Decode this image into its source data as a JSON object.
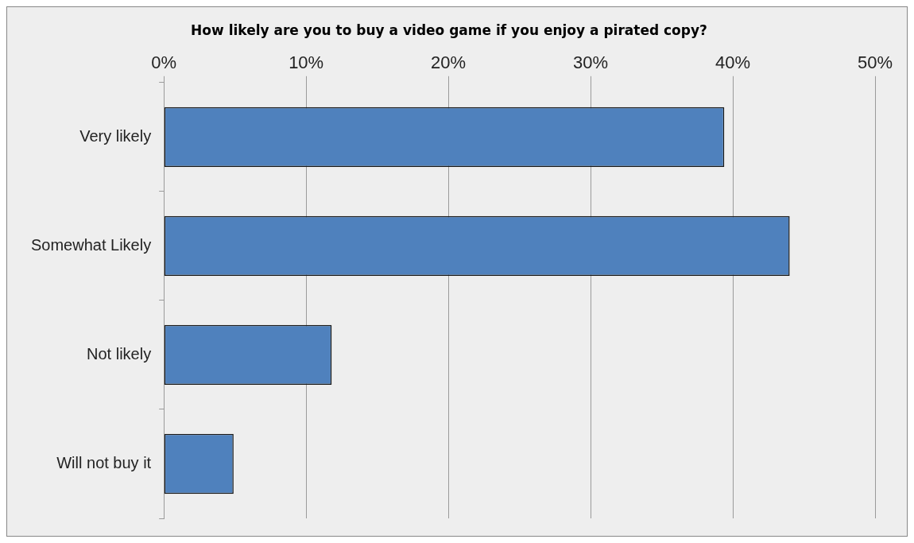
{
  "chart_data": {
    "type": "bar",
    "orientation": "horizontal",
    "title": "How likely are you to buy a video game if you enjoy a pirated copy?",
    "categories": [
      "Very likely",
      "Somewhat Likely",
      "Not likely",
      "Will not buy it"
    ],
    "values": [
      39.4,
      44.0,
      11.8,
      4.9
    ],
    "color": "#4f81bd",
    "xlim": [
      0,
      50
    ],
    "xticks": [
      {
        "value": 0,
        "label": "0%"
      },
      {
        "value": 10,
        "label": "10%"
      },
      {
        "value": 20,
        "label": "20%"
      },
      {
        "value": 30,
        "label": "30%"
      },
      {
        "value": 40,
        "label": "40%"
      },
      {
        "value": 50,
        "label": "50%"
      }
    ],
    "grid": "x",
    "legend": false
  }
}
